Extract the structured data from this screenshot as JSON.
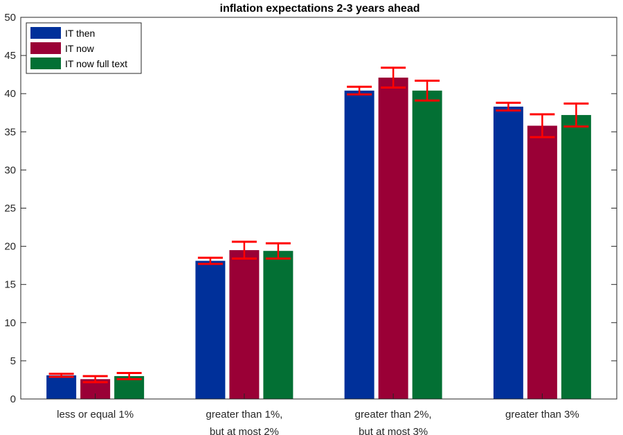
{
  "chart_data": {
    "type": "bar",
    "title": "inflation expectations 2-3 years ahead",
    "xlabel": "",
    "ylabel": "",
    "ylim": [
      0,
      50
    ],
    "yticks": [
      0,
      5,
      10,
      15,
      20,
      25,
      30,
      35,
      40,
      45,
      50
    ],
    "grid": false,
    "legend_position": "top-left",
    "categories": [
      [
        "less or equal 1%"
      ],
      [
        "greater than 1%,",
        "but at most 2%"
      ],
      [
        "greater than 2%,",
        "but at most 3%"
      ],
      [
        "greater than 3%"
      ]
    ],
    "series": [
      {
        "name": "IT then",
        "color": "#00309a",
        "values": [
          3.1,
          18.1,
          40.4,
          38.3
        ],
        "error": [
          0.2,
          0.4,
          0.5,
          0.5
        ]
      },
      {
        "name": "IT now",
        "color": "#9a0036",
        "values": [
          2.6,
          19.5,
          42.1,
          35.8
        ],
        "error": [
          0.4,
          1.1,
          1.3,
          1.5
        ]
      },
      {
        "name": "IT now full text",
        "color": "#037034",
        "values": [
          3.0,
          19.4,
          40.4,
          37.2
        ],
        "error": [
          0.4,
          1.0,
          1.3,
          1.5
        ]
      }
    ],
    "error_bar_color": "#ff0000"
  }
}
